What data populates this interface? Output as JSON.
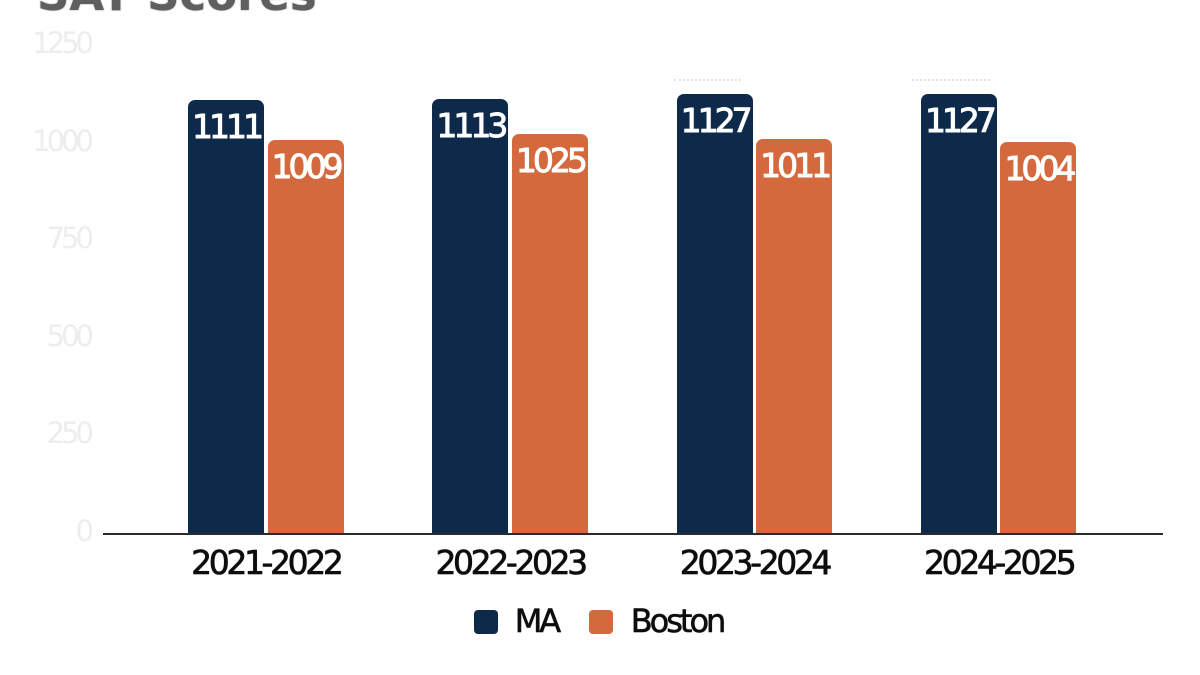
{
  "title": "SAT Scores",
  "chart_data": {
    "type": "bar",
    "title": "SAT Scores",
    "categories": [
      "2021-2022",
      "2022-2023",
      "2023-2024",
      "2024-2025"
    ],
    "series": [
      {
        "name": "MA",
        "color": "#0e2a4b",
        "values": [
          1111,
          1113,
          1127,
          1127
        ]
      },
      {
        "name": "Boston",
        "color": "#d5693e",
        "values": [
          1009,
          1025,
          1011,
          1004
        ]
      }
    ],
    "xlabel": "",
    "ylabel": "",
    "ylim": [
      0,
      1250
    ],
    "y_ticks": [
      0,
      250,
      500,
      750,
      1000,
      1250
    ],
    "grid": false,
    "legend_position": "bottom",
    "value_labels": "inside-top",
    "value_label_color": "#ffffff",
    "axis_line_color": "#2b2b2b",
    "tick_label_color": "#ededed",
    "category_label_color": "#0d0d0d",
    "title_color": "#5f5f5f",
    "background_color": "#ffffff"
  },
  "legend": {
    "items": [
      {
        "label": "MA",
        "color": "#0e2a4b"
      },
      {
        "label": "Boston",
        "color": "#d5693e"
      }
    ]
  }
}
